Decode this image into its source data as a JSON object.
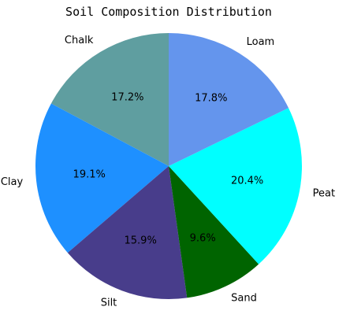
{
  "chart_data": {
    "type": "pie",
    "title": "Soil Composition Distribution",
    "start_angle_deg": 90,
    "direction": "counterclockwise",
    "slices": [
      {
        "label": "Chalk",
        "value": 17.2,
        "pct_label": "17.2%",
        "color": "#5f9ea0"
      },
      {
        "label": "Clay",
        "value": 19.1,
        "pct_label": "19.1%",
        "color": "#1e90ff"
      },
      {
        "label": "Silt",
        "value": 15.9,
        "pct_label": "15.9%",
        "color": "#483d8b"
      },
      {
        "label": "Sand",
        "value": 9.6,
        "pct_label": "9.6%",
        "color": "#006400"
      },
      {
        "label": "Peat",
        "value": 20.4,
        "pct_label": "20.4%",
        "color": "#00ffff"
      },
      {
        "label": "Loam",
        "value": 17.8,
        "pct_label": "17.8%",
        "color": "#6495ed"
      }
    ],
    "legend": "none"
  }
}
